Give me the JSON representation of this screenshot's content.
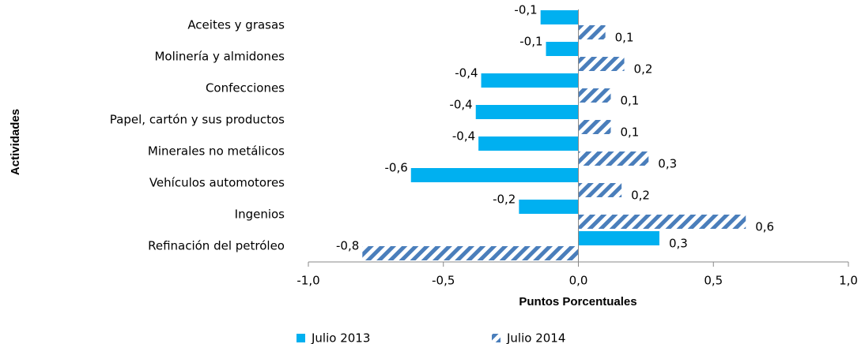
{
  "chart_data": {
    "type": "hbar",
    "x_label": "Puntos Porcentuales",
    "y_label": "Actividades",
    "categories": [
      "Aceites y grasas",
      "Molinería y almidones",
      "Confecciones",
      "Papel, cartón y sus productos",
      "Minerales no metálicos",
      "Vehículos automotores",
      "Ingenios",
      "Refinación del petróleo"
    ],
    "series": [
      {
        "name": "Julio 2013",
        "color": "#00b0f0",
        "pattern": "solid",
        "values": [
          -0.14,
          -0.12,
          -0.36,
          -0.38,
          -0.37,
          -0.62,
          -0.22,
          0.3
        ],
        "value_labels": [
          "-0,1",
          "-0,1",
          "-0,4",
          "-0,4",
          "-0,4",
          "-0,6",
          "-0,2",
          "0,3"
        ]
      },
      {
        "name": "Julio 2014",
        "color": "#4a7ebb",
        "pattern": "hatch",
        "values": [
          0.1,
          0.17,
          0.12,
          0.12,
          0.26,
          0.16,
          0.62,
          -0.8
        ],
        "value_labels": [
          "0,1",
          "0,2",
          "0,1",
          "0,1",
          "0,3",
          "0,2",
          "0,6",
          "-0,8"
        ]
      }
    ],
    "xlim": [
      -1,
      1
    ],
    "xticks": [
      {
        "value": -1,
        "label": "-1,0"
      },
      {
        "value": -0.5,
        "label": "-0,5"
      },
      {
        "value": 0,
        "label": "0,0"
      },
      {
        "value": 0.5,
        "label": "0,5"
      },
      {
        "value": 1,
        "label": "1,0"
      }
    ]
  }
}
